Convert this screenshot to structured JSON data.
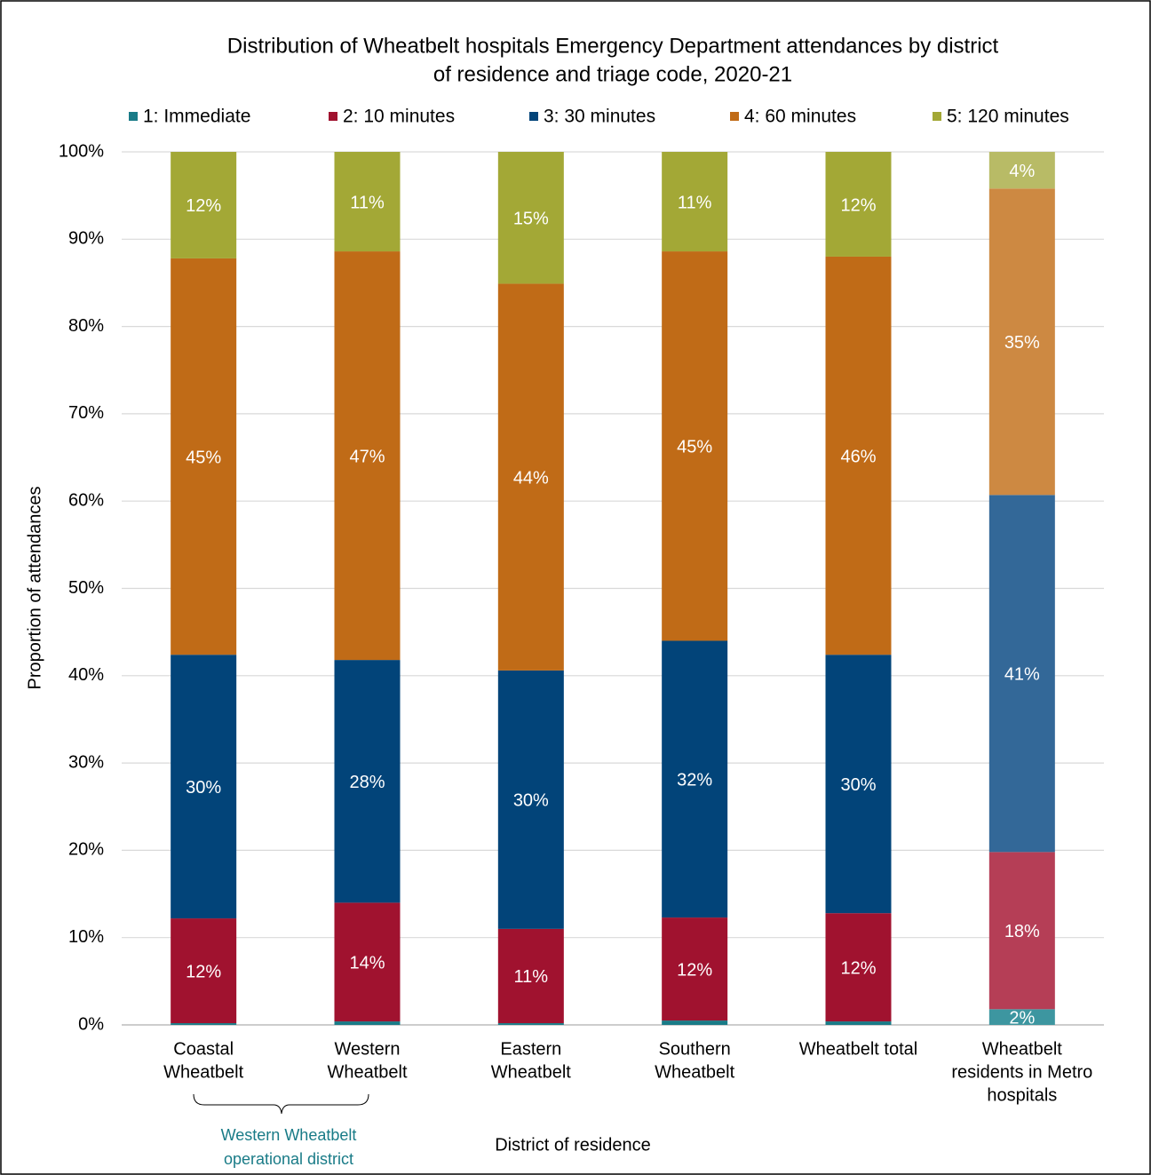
{
  "chart_data": {
    "type": "stacked_bar",
    "title": [
      "Distribution of Wheatbelt hospitals Emergency Department attendances by district",
      "of residence and triage code, 2020-21"
    ],
    "x_label": "District of residence",
    "y_label": "Proportion of attendances",
    "annotation": [
      "Western Wheatbelt",
      "operational district"
    ],
    "categories": [
      [
        "Coastal",
        "Wheatbelt"
      ],
      [
        "Western",
        "Wheatbelt"
      ],
      [
        "Eastern",
        "Wheatbelt"
      ],
      [
        "Southern",
        "Wheatbelt"
      ],
      [
        "Wheatbelt total"
      ],
      [
        "Wheatbelt",
        "residents in Metro",
        "hospitals"
      ]
    ],
    "ylim": [
      0,
      100
    ],
    "yticks": [
      {
        "value": 0,
        "label": "0%"
      },
      {
        "value": 10,
        "label": "10%"
      },
      {
        "value": 20,
        "label": "20%"
      },
      {
        "value": 30,
        "label": "30%"
      },
      {
        "value": 40,
        "label": "40%"
      },
      {
        "value": 50,
        "label": "50%"
      },
      {
        "value": 60,
        "label": "60%"
      },
      {
        "value": 70,
        "label": "70%"
      },
      {
        "value": 80,
        "label": "80%"
      },
      {
        "value": 90,
        "label": "90%"
      },
      {
        "value": 100,
        "label": "100%"
      }
    ],
    "grid": true,
    "legend": "top",
    "series": [
      {
        "name": "1: Immediate",
        "color": "#197b87",
        "colors": [
          "#197b87",
          "#197b87",
          "#197b87",
          "#197b87",
          "#197b87",
          "#3d96a0"
        ],
        "values": [
          0.2,
          0.4,
          0.2,
          0.5,
          0.4,
          1.8
        ],
        "value_labels": [
          null,
          null,
          null,
          null,
          null,
          "2%"
        ]
      },
      {
        "name": "2: 10 minutes",
        "color": "#a0122f",
        "colors": [
          "#a0122f",
          "#a0122f",
          "#a0122f",
          "#a0122f",
          "#a0122f",
          "#b53e56"
        ],
        "values": [
          12.0,
          13.6,
          10.8,
          11.8,
          12.4,
          18.0
        ],
        "value_labels": [
          "12%",
          "14%",
          "11%",
          "12%",
          "12%",
          "18%"
        ]
      },
      {
        "name": "3: 30 minutes",
        "color": "#024479",
        "colors": [
          "#024479",
          "#024479",
          "#024479",
          "#024479",
          "#024479",
          "#336898"
        ],
        "values": [
          30.2,
          27.8,
          29.6,
          31.7,
          29.6,
          40.9
        ],
        "value_labels": [
          "30%",
          "28%",
          "30%",
          "32%",
          "30%",
          "41%"
        ]
      },
      {
        "name": "4: 60 minutes",
        "color": "#c06b17",
        "colors": [
          "#c06b17",
          "#c06b17",
          "#c06b17",
          "#c06b17",
          "#c06b17",
          "#cd8942"
        ],
        "values": [
          45.4,
          46.8,
          44.3,
          44.6,
          45.6,
          35.1
        ],
        "value_labels": [
          "45%",
          "47%",
          "44%",
          "45%",
          "46%",
          "35%"
        ]
      },
      {
        "name": "5: 120 minutes",
        "color": "#a3a836",
        "colors": [
          "#a3a836",
          "#a3a836",
          "#a3a836",
          "#a3a836",
          "#a3a836",
          "#b8bb66"
        ],
        "values": [
          12.2,
          11.4,
          15.1,
          11.4,
          12.0,
          4.2
        ],
        "value_labels": [
          "12%",
          "11%",
          "15%",
          "11%",
          "12%",
          "4%"
        ]
      }
    ]
  }
}
